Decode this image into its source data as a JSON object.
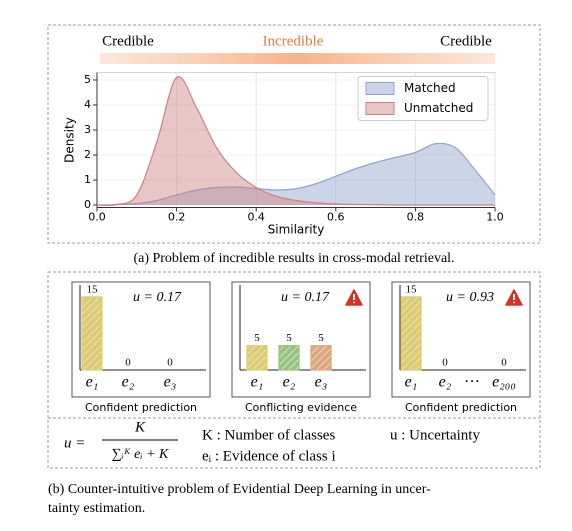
{
  "header": {
    "left": "Credible",
    "middle": "Incredible",
    "right": "Credible"
  },
  "chart_data": {
    "type": "area",
    "xlabel": "Similarity",
    "ylabel": "Density",
    "x": [
      0,
      0.05,
      0.1,
      0.15,
      0.2,
      0.25,
      0.3,
      0.35,
      0.4,
      0.45,
      0.5,
      0.55,
      0.6,
      0.65,
      0.7,
      0.75,
      0.8,
      0.85,
      0.9,
      0.95,
      1.0
    ],
    "series": [
      {
        "name": "Matched",
        "color": "#8ea2cc",
        "values": [
          0,
          0.02,
          0.06,
          0.18,
          0.4,
          0.6,
          0.7,
          0.72,
          0.66,
          0.6,
          0.65,
          0.85,
          1.15,
          1.45,
          1.7,
          1.9,
          2.1,
          2.45,
          2.3,
          1.4,
          0.4
        ]
      },
      {
        "name": "Unmatched",
        "color": "#cf8080",
        "values": [
          0,
          0.02,
          0.4,
          2.5,
          5.1,
          3.9,
          2.3,
          1.3,
          0.7,
          0.35,
          0.18,
          0.09,
          0.04,
          0.02,
          0.01,
          0,
          0,
          0,
          0,
          0,
          0
        ]
      }
    ],
    "xlim": [
      0,
      1
    ],
    "ylim": [
      -0.1,
      5.3
    ],
    "xticks": [
      {
        "value": 0,
        "label": "0.0"
      },
      {
        "value": 0.2,
        "label": "0.2"
      },
      {
        "value": 0.4,
        "label": "0.4"
      },
      {
        "value": 0.6,
        "label": "0.6"
      },
      {
        "value": 0.8,
        "label": "0.8"
      },
      {
        "value": 1,
        "label": "1.0"
      }
    ],
    "yticks": [
      0,
      1,
      2,
      3,
      4,
      5
    ],
    "grid": true,
    "legend": "upper right"
  },
  "caption_a": "(a) Problem of incredible results in cross-modal retrieval.",
  "examples": [
    {
      "u_label": "u = 0.17",
      "warning": false,
      "categories": [
        "e₁",
        "e₂",
        "e₃"
      ],
      "values": [
        15,
        0,
        0
      ],
      "colors": [
        "#f6e27a",
        "#f6e27a",
        "#f6e27a"
      ],
      "caption": "Confident prediction"
    },
    {
      "u_label": "u = 0.17",
      "warning": true,
      "categories": [
        "e₁",
        "e₂",
        "e₃"
      ],
      "values": [
        5,
        5,
        5
      ],
      "colors": [
        "#f6e27a",
        "#a8d98a",
        "#f7b98c"
      ],
      "caption": "Conflicting evidence"
    },
    {
      "u_label": "u = 0.93",
      "warning": true,
      "categories": [
        "e₁",
        "e₂",
        "e₂₀₀"
      ],
      "values": [
        15,
        0,
        0
      ],
      "ellipsis": "···",
      "colors": [
        "#f6e27a",
        "#f6e27a",
        "#f6e27a"
      ],
      "caption": "Confident prediction"
    }
  ],
  "formula": {
    "lhs": "u =",
    "numerator": "K",
    "denominator": "∑ᵢᴷ eᵢ + K",
    "definitions": [
      "K : Number of classes",
      "eᵢ : Evidence of class i",
      "u :  Uncertainty"
    ]
  },
  "caption_b": [
    "(b) Counter-intuitive problem of Evidential Deep Learning in uncer-",
    "tainty estimation."
  ]
}
